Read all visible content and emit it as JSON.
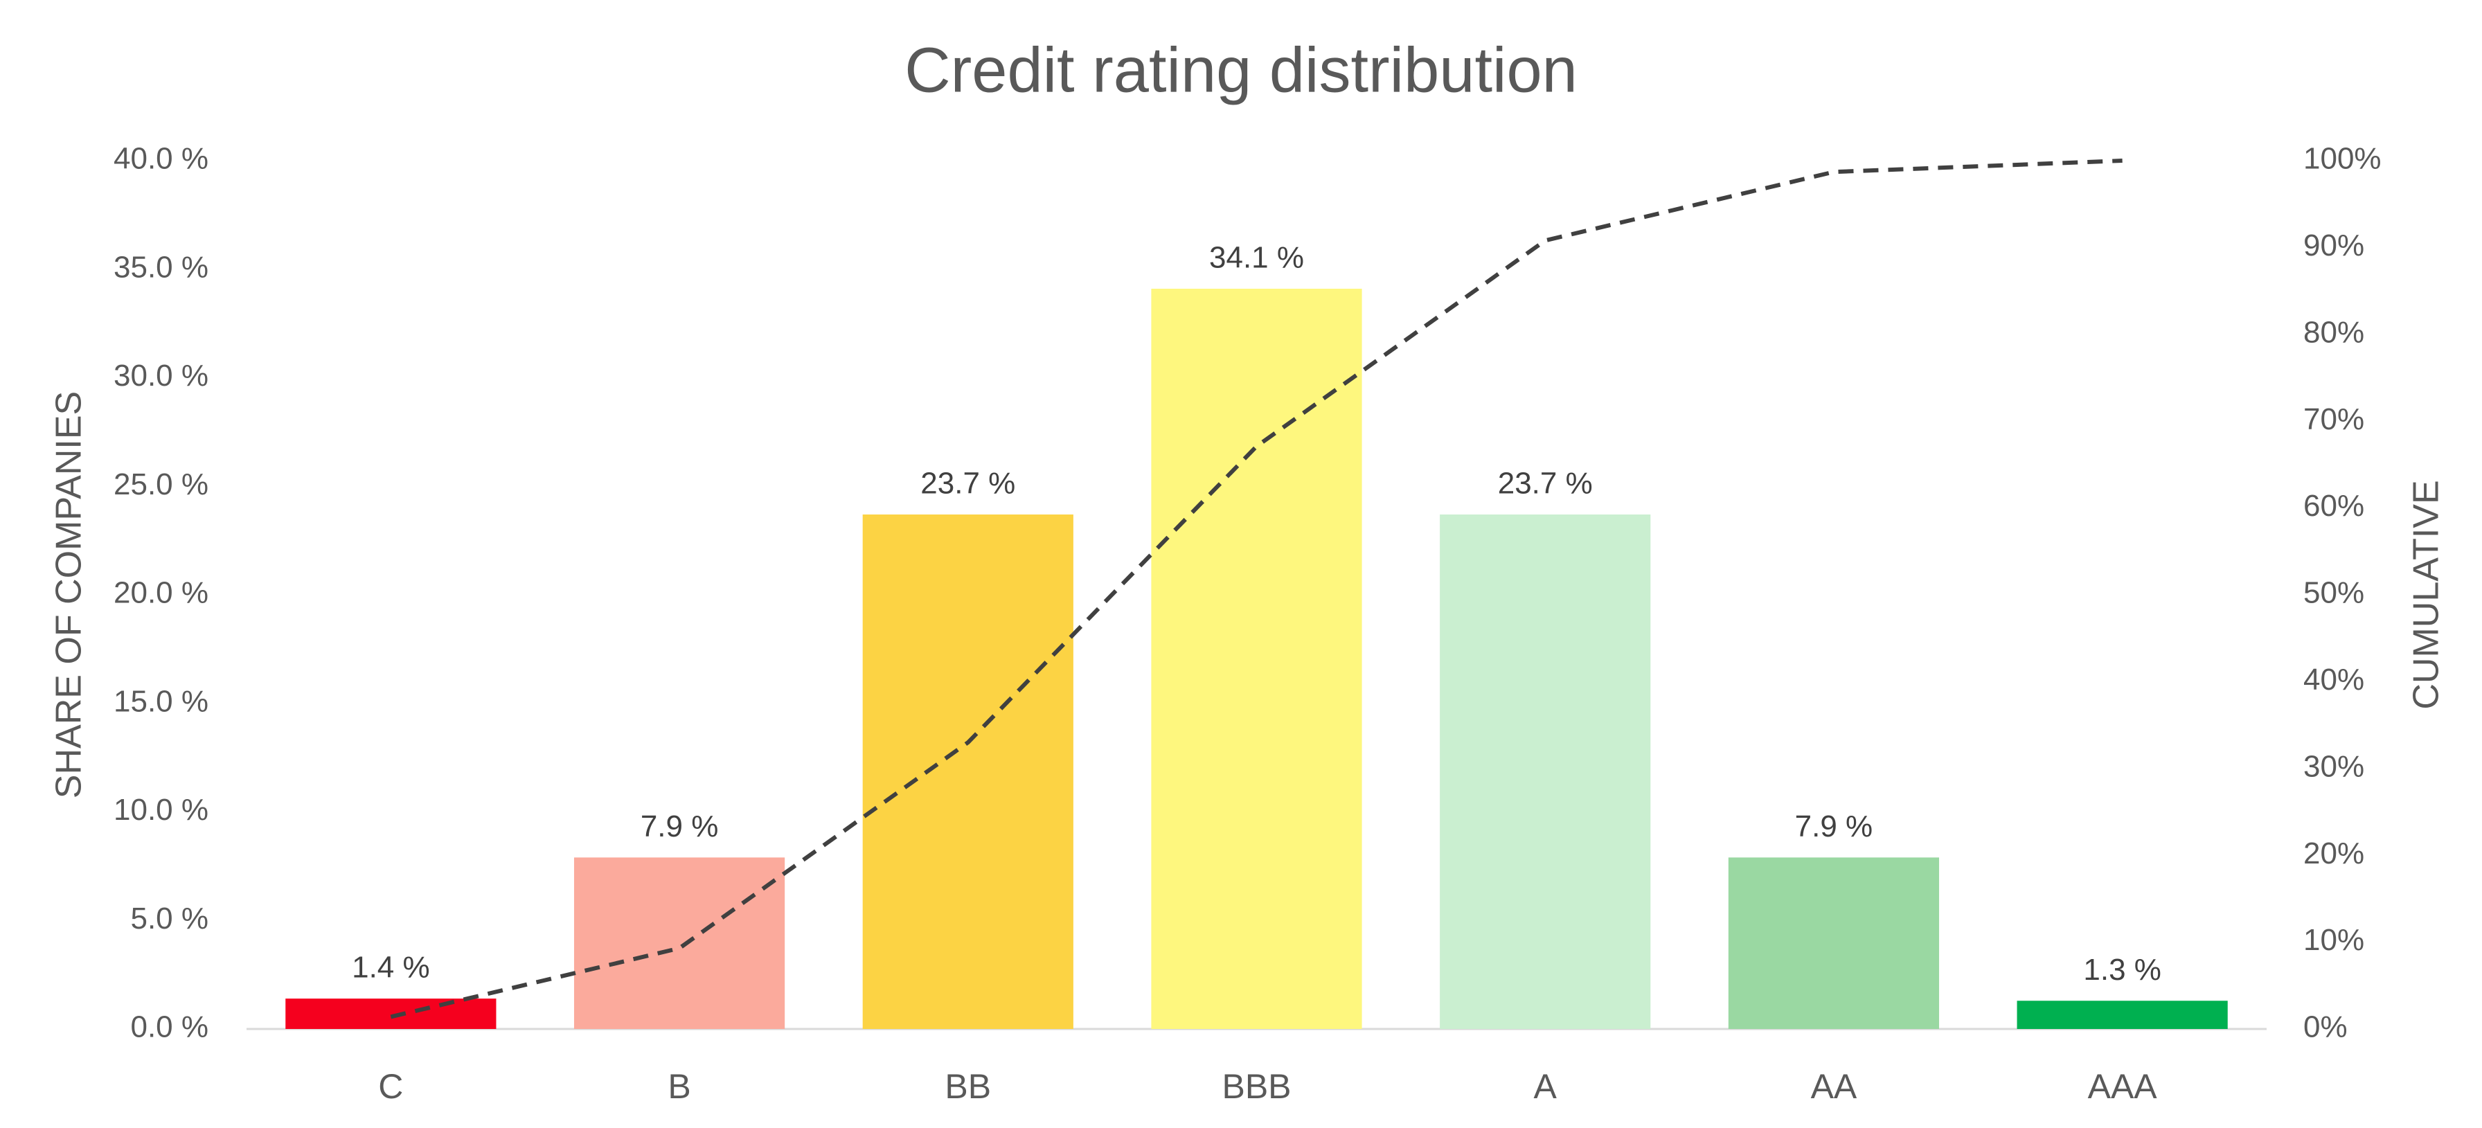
{
  "chart_data": {
    "type": "bar",
    "title": "Credit rating distribution",
    "ylabel": "SHARE OF COMPANIES",
    "y2label": "CUMULATIVE",
    "categories": [
      "C",
      "B",
      "BB",
      "BBB",
      "A",
      "AA",
      "AAA"
    ],
    "values": [
      1.4,
      7.9,
      23.7,
      34.1,
      23.7,
      7.9,
      1.3
    ],
    "value_labels": [
      "1.4 %",
      "7.9 %",
      "23.7 %",
      "34.1 %",
      "23.7 %",
      "7.9 %",
      "1.3 %"
    ],
    "colors": [
      "#f5001e",
      "#fbaa9c",
      "#fcd344",
      "#fef77e",
      "#caefd0",
      "#9ad8a2",
      "#00b050"
    ],
    "cumulative": {
      "values": [
        1.4,
        9.3,
        33.0,
        67.1,
        90.8,
        98.7,
        100.0
      ],
      "axis": "y2",
      "color": "#404040",
      "dashed": true
    },
    "ylim": [
      0,
      40
    ],
    "yticks": [
      {
        "value": 0,
        "label": "0.0 %"
      },
      {
        "value": 5,
        "label": "5.0 %"
      },
      {
        "value": 10,
        "label": "10.0 %"
      },
      {
        "value": 15,
        "label": "15.0 %"
      },
      {
        "value": 20,
        "label": "20.0 %"
      },
      {
        "value": 25,
        "label": "25.0 %"
      },
      {
        "value": 30,
        "label": "30.0 %"
      },
      {
        "value": 35,
        "label": "35.0 %"
      },
      {
        "value": 40,
        "label": "40.0 %"
      }
    ],
    "y2lim": [
      0,
      100
    ],
    "y2ticks": [
      {
        "value": 0,
        "label": "0%"
      },
      {
        "value": 10,
        "label": "10%"
      },
      {
        "value": 20,
        "label": "20%"
      },
      {
        "value": 30,
        "label": "30%"
      },
      {
        "value": 40,
        "label": "40%"
      },
      {
        "value": 50,
        "label": "50%"
      },
      {
        "value": 60,
        "label": "60%"
      },
      {
        "value": 70,
        "label": "70%"
      },
      {
        "value": 80,
        "label": "80%"
      },
      {
        "value": 90,
        "label": "90%"
      },
      {
        "value": 100,
        "label": "100%"
      }
    ],
    "grid": false
  }
}
